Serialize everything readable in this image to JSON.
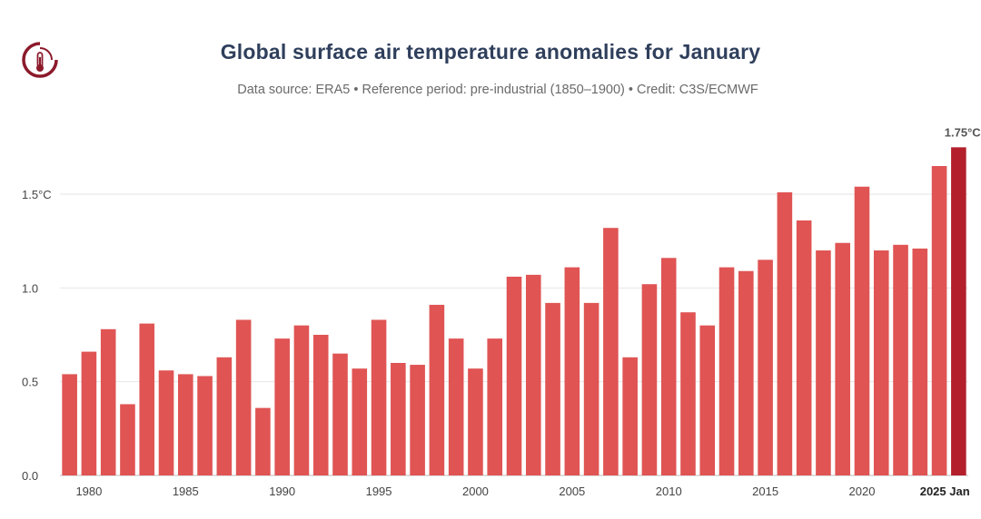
{
  "header": {
    "title": "Global surface air temperature anomalies for January",
    "subtitle": "Data source: ERA5 • Reference period: pre-industrial (1850–1900) • Credit: C3S/ECMWF",
    "logo_icon": "thermometer-logo-icon"
  },
  "colors": {
    "bar": "#e05454",
    "highlight_bar": "#b3202c",
    "title": "#2f3f5c",
    "grid": "#e6e6e6"
  },
  "chart_data": {
    "type": "bar",
    "title": "Global surface air temperature anomalies for January",
    "subtitle": "Data source: ERA5 • Reference period: pre-industrial (1850–1900) • Credit: C3S/ECMWF",
    "ylim": [
      0,
      1.8
    ],
    "grid": true,
    "categories": [
      1979,
      1980,
      1981,
      1982,
      1983,
      1984,
      1985,
      1986,
      1987,
      1988,
      1989,
      1990,
      1991,
      1992,
      1993,
      1994,
      1995,
      1996,
      1997,
      1998,
      1999,
      2000,
      2001,
      2002,
      2003,
      2004,
      2005,
      2006,
      2007,
      2008,
      2009,
      2010,
      2011,
      2012,
      2013,
      2014,
      2015,
      2016,
      2017,
      2018,
      2019,
      2020,
      2021,
      2022,
      2023,
      2024,
      2025
    ],
    "values": [
      0.54,
      0.66,
      0.78,
      0.38,
      0.81,
      0.56,
      0.54,
      0.53,
      0.63,
      0.83,
      0.36,
      0.73,
      0.8,
      0.75,
      0.65,
      0.57,
      0.83,
      0.6,
      0.59,
      0.91,
      0.73,
      0.57,
      0.73,
      1.06,
      1.07,
      0.92,
      1.11,
      0.92,
      1.32,
      0.63,
      1.02,
      1.16,
      0.87,
      0.8,
      1.11,
      1.09,
      1.15,
      1.51,
      1.36,
      1.2,
      1.24,
      1.54,
      1.2,
      1.23,
      1.21,
      1.65,
      1.75
    ],
    "y_ticks": [
      {
        "value": 0,
        "label": "0.0"
      },
      {
        "value": 0.5,
        "label": "0.5"
      },
      {
        "value": 1.0,
        "label": "1.0"
      },
      {
        "value": 1.5,
        "label": "1.5°C"
      }
    ],
    "x_ticks": [
      {
        "year": 1980,
        "label": "1980"
      },
      {
        "year": 1985,
        "label": "1985"
      },
      {
        "year": 1990,
        "label": "1990"
      },
      {
        "year": 1995,
        "label": "1995"
      },
      {
        "year": 2000,
        "label": "2000"
      },
      {
        "year": 2005,
        "label": "2005"
      },
      {
        "year": 2010,
        "label": "2010"
      },
      {
        "year": 2015,
        "label": "2015"
      },
      {
        "year": 2020,
        "label": "2020"
      }
    ],
    "highlight": {
      "year": 2025,
      "label": "2025 Jan",
      "annotation": "1.75°C"
    }
  }
}
